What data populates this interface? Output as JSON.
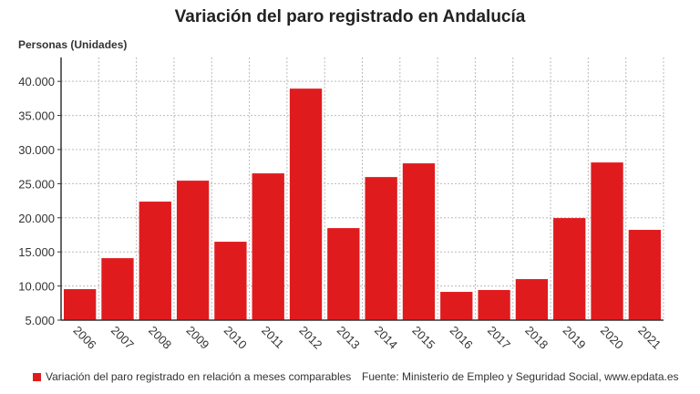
{
  "chart_data": {
    "type": "bar",
    "title": "Variación del paro registrado en Andalucía",
    "ylabel": "Personas (Unidades)",
    "xlabel": "",
    "categories": [
      "2006",
      "2007",
      "2008",
      "2009",
      "2010",
      "2011",
      "2012",
      "2013",
      "2014",
      "2015",
      "2016",
      "2017",
      "2018",
      "2019",
      "2020",
      "2021"
    ],
    "values": [
      9540,
      14080,
      22370,
      25440,
      16490,
      26510,
      38930,
      18490,
      25970,
      27980,
      9140,
      9410,
      11010,
      19960,
      28110,
      18230
    ],
    "ylim": [
      5000,
      43500
    ],
    "yticks": [
      "5.000",
      "10.000",
      "15.000",
      "20.000",
      "25.000",
      "30.000",
      "35.000",
      "40.000"
    ],
    "ytick_values": [
      5000,
      10000,
      15000,
      20000,
      25000,
      30000,
      35000,
      40000
    ],
    "grid": true,
    "legend": {
      "label": "Variación del paro registrado en relación a meses comparables",
      "placement": "bottom-left"
    },
    "source": "Fuente: Ministerio de Empleo y Seguridad Social, www.epdata.es",
    "color": "#e01b1e"
  }
}
